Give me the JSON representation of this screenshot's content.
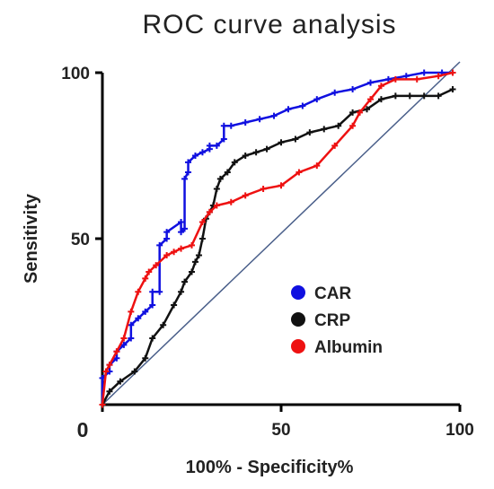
{
  "chart_data": {
    "type": "line",
    "title": "ROC curve analysis",
    "xlabel": "100%  - Specificity%",
    "ylabel": "Sensitivity",
    "xlim": [
      0,
      100
    ],
    "ylim": [
      0,
      100
    ],
    "x_ticks": [
      0,
      50,
      100
    ],
    "x_tick_labels": [
      "0",
      "50",
      "100"
    ],
    "y_ticks": [
      50,
      100
    ],
    "y_tick_labels": [
      "50",
      "100"
    ],
    "legend_position": "bottom-right",
    "reference_line": {
      "x": [
        0,
        100
      ],
      "y": [
        0,
        100
      ],
      "color": "#4a5f8a"
    },
    "series": [
      {
        "name": "CAR",
        "color": "#1010e0",
        "x": [
          0,
          0,
          2,
          2,
          4,
          4,
          6,
          8,
          8,
          10,
          12,
          14,
          14,
          16,
          16,
          18,
          18,
          22,
          22,
          23,
          23,
          24,
          24,
          26,
          28,
          30,
          30,
          32,
          34,
          34,
          36,
          40,
          44,
          48,
          52,
          56,
          60,
          65,
          70,
          75,
          80,
          85,
          90,
          95,
          98
        ],
        "y": [
          0,
          8,
          10,
          12,
          14,
          16,
          18,
          20,
          24,
          26,
          28,
          30,
          34,
          34,
          48,
          50,
          52,
          55,
          52,
          53,
          68,
          70,
          73,
          75,
          76,
          77,
          78,
          78,
          80,
          84,
          84,
          85,
          86,
          87,
          89,
          90,
          92,
          94,
          95,
          97,
          98,
          99,
          100,
          100,
          100
        ]
      },
      {
        "name": "CRP",
        "color": "#111111",
        "x": [
          0,
          2,
          5,
          9,
          12,
          14,
          17,
          20,
          22,
          23,
          25,
          26,
          27,
          28,
          29,
          30,
          31,
          32,
          33,
          35,
          37,
          40,
          43,
          46,
          50,
          54,
          58,
          62,
          66,
          70,
          74,
          78,
          82,
          86,
          90,
          94,
          98
        ],
        "y": [
          0,
          4,
          7,
          10,
          14,
          20,
          24,
          30,
          34,
          37,
          40,
          43,
          45,
          50,
          56,
          58,
          60,
          65,
          68,
          70,
          73,
          75,
          76,
          77,
          79,
          80,
          82,
          83,
          84,
          88,
          89,
          92,
          93,
          93,
          93,
          93,
          95
        ]
      },
      {
        "name": "Albumin",
        "color": "#ee1111",
        "x": [
          0,
          1,
          2,
          4,
          6,
          8,
          10,
          12,
          13,
          15,
          18,
          20,
          22,
          25,
          28,
          30,
          32,
          36,
          40,
          45,
          50,
          55,
          60,
          65,
          70,
          72,
          75,
          78,
          82,
          88,
          94,
          98
        ],
        "y": [
          0,
          10,
          12,
          16,
          20,
          28,
          34,
          38,
          40,
          42,
          45,
          46,
          47,
          48,
          55,
          58,
          60,
          61,
          63,
          65,
          66,
          70,
          72,
          78,
          84,
          88,
          92,
          96,
          98,
          98,
          99,
          100
        ]
      }
    ]
  }
}
